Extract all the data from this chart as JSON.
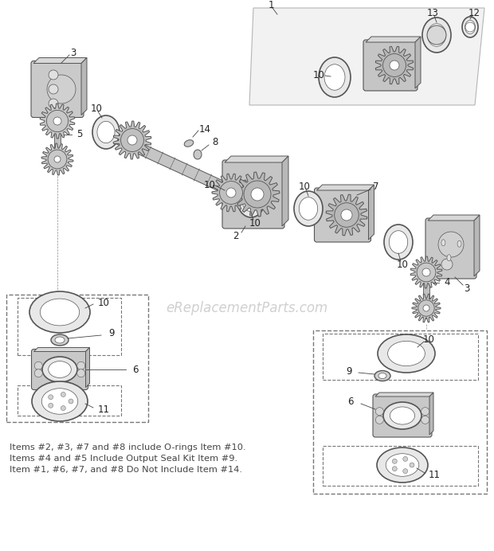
{
  "bg_color": "#ffffff",
  "fig_width": 6.2,
  "fig_height": 6.92,
  "dpi": 100,
  "watermark": "eReplacementParts.com",
  "watermark_color": "#c8c8c8",
  "watermark_alpha": 0.85,
  "notes": [
    "Items #2, #3, #7 and #8 include O-rings Item #10.",
    "Items #4 and #5 Include Output Seal Kit Item #9.",
    "Item #1, #6, #7, and #8 Do Not Include Item #14."
  ],
  "part_edge": "#555555",
  "part_fill": "#d8d8d8",
  "part_fill_dark": "#b8b8b8",
  "label_color": "#222222",
  "label_fontsize": 8.5
}
